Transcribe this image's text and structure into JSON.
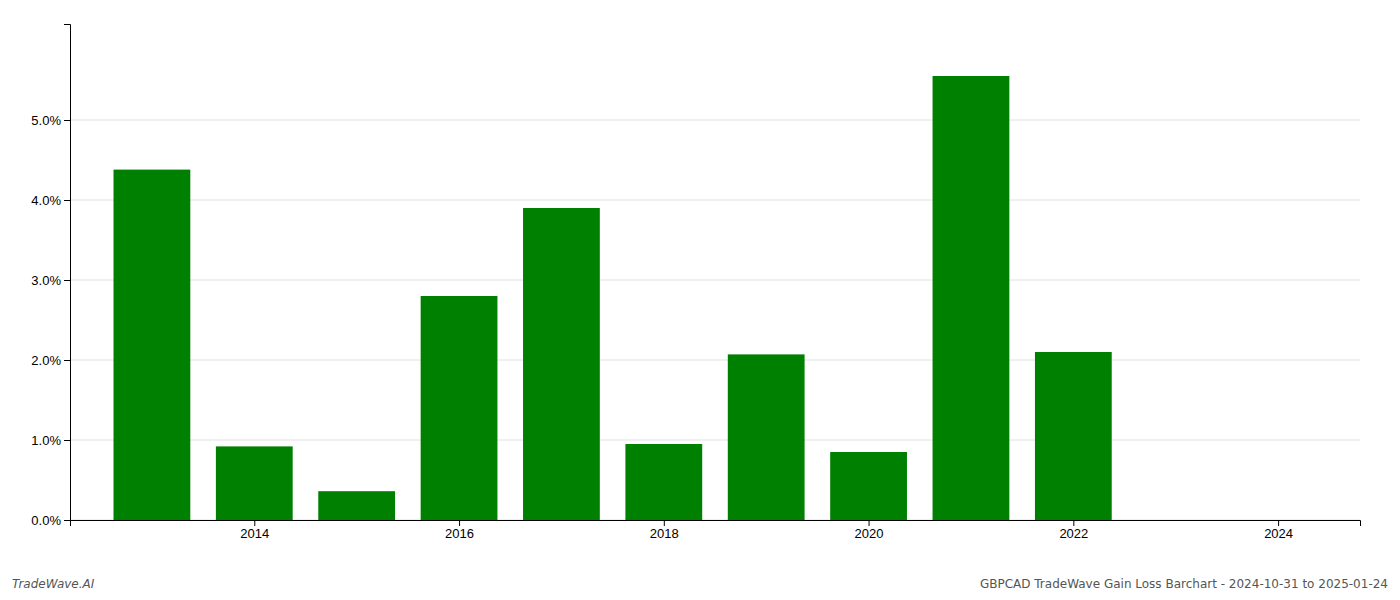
{
  "chart_data": {
    "type": "bar",
    "x": [
      2013,
      2014,
      2015,
      2016,
      2017,
      2018,
      2019,
      2020,
      2021,
      2022,
      2023
    ],
    "values": [
      0.0438,
      0.0092,
      0.0036,
      0.028,
      0.039,
      0.0095,
      0.0207,
      0.0085,
      0.0555,
      0.021,
      0.0
    ],
    "color": "#008000",
    "xlim": [
      2012.2,
      2024.8
    ],
    "xticks": [
      2014,
      2016,
      2018,
      2020,
      2022,
      2024
    ],
    "ylim": [
      0,
      0.062
    ],
    "yticks": [
      {
        "value": 0.0,
        "label": "0.0%"
      },
      {
        "value": 0.01,
        "label": "1.0%"
      },
      {
        "value": 0.02,
        "label": "2.0%"
      },
      {
        "value": 0.03,
        "label": "3.0%"
      },
      {
        "value": 0.04,
        "label": "4.0%"
      },
      {
        "value": 0.05,
        "label": "5.0%"
      }
    ],
    "grid": true,
    "annotations": [
      "TradeWave.AI",
      "GBPCAD TradeWave Gain Loss Barchart - 2024-10-31 to 2025-01-24"
    ]
  }
}
